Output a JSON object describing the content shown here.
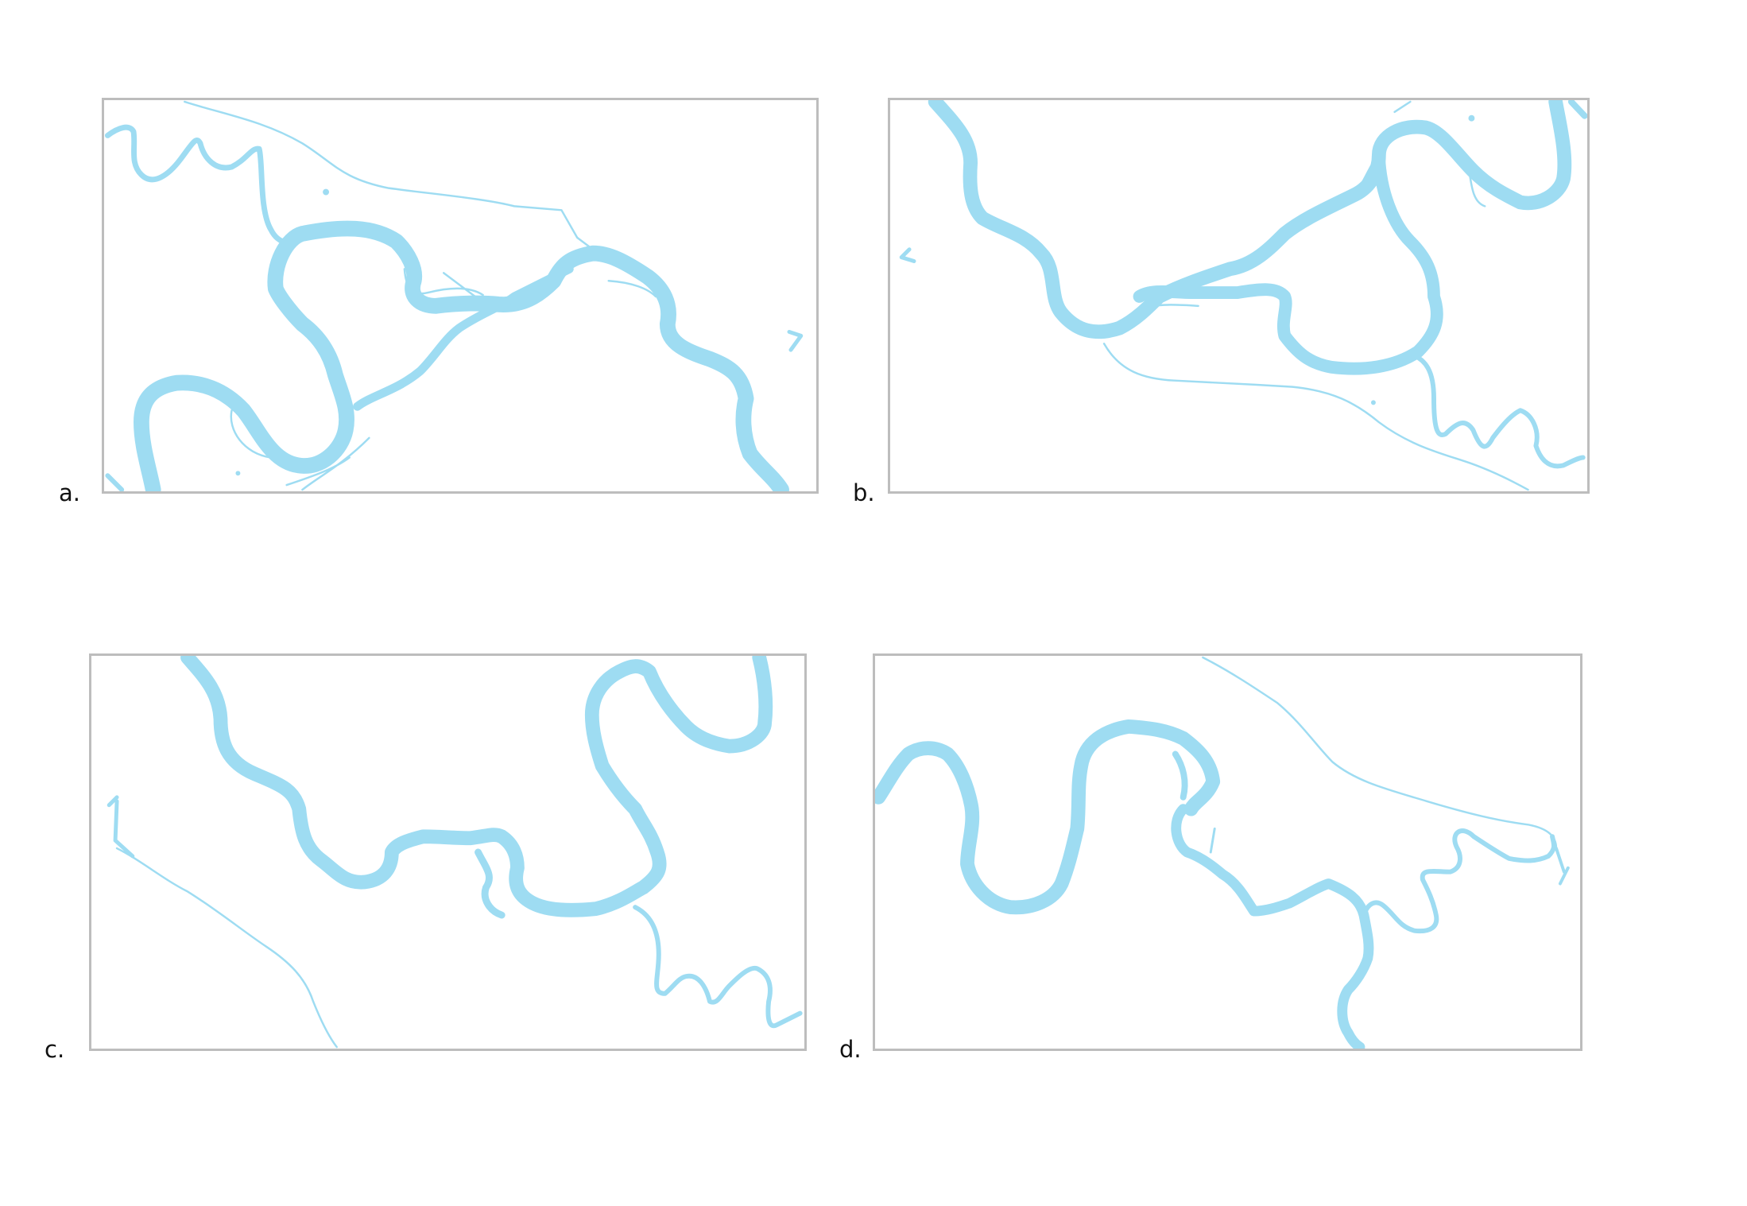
{
  "panels": [
    {
      "id": "a",
      "label": "a."
    },
    {
      "id": "b",
      "label": "b."
    },
    {
      "id": "c",
      "label": "c."
    },
    {
      "id": "d",
      "label": "d."
    }
  ],
  "style": {
    "water_color": "#9edcf2",
    "frame_color": "#bdbdbd"
  }
}
